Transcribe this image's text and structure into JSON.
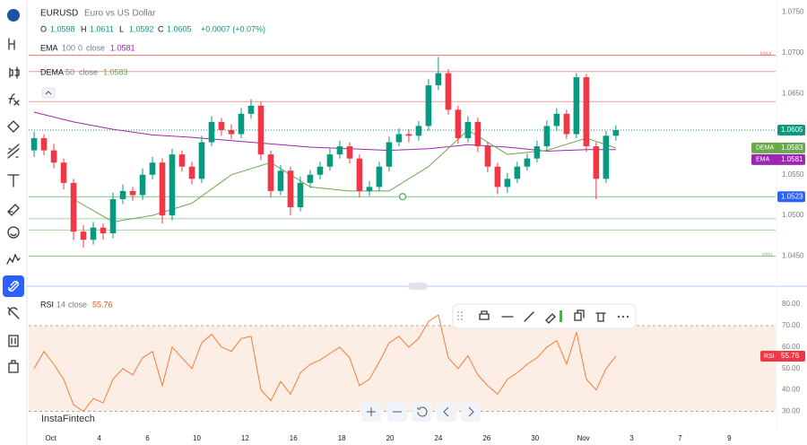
{
  "watermark": "InstaFintech",
  "chart_data": [
    {
      "type": "candlestick",
      "symbol": "EURUSD",
      "subtitle": "Euro vs US Dollar",
      "ohlc_labels": [
        "O",
        "H",
        "L",
        "C"
      ],
      "change": "+0.0007 (+0.07%)",
      "xlim": [
        -0.55,
        75.2
      ],
      "ylim": [
        1.0414,
        1.0765
      ],
      "grid": false,
      "yticks": [
        {
          "value": 1.075,
          "label": "1.0750"
        },
        {
          "value": 1.07,
          "label": "1.0700"
        },
        {
          "value": 1.065,
          "label": "1.0650"
        },
        {
          "value": 1.055,
          "label": "1.0550"
        },
        {
          "value": 1.05,
          "label": "1.0500"
        },
        {
          "value": 1.045,
          "label": "1.0450"
        }
      ],
      "series": [
        {
          "name": "EURUSD",
          "up_color": "#089981",
          "down_color": "#f23645",
          "open": [
            1.058,
            1.0595,
            1.058,
            1.0565,
            1.054,
            1.048,
            1.047,
            1.0485,
            1.0478,
            1.052,
            1.053,
            1.0525,
            1.055,
            1.0565,
            1.05,
            1.0575,
            1.056,
            1.0545,
            1.059,
            1.0615,
            1.0605,
            1.06,
            1.0625,
            1.0635,
            1.0575,
            1.053,
            1.0555,
            1.051,
            1.054,
            1.055,
            1.056,
            1.0575,
            1.0585,
            1.057,
            1.053,
            1.0535,
            1.056,
            1.059,
            1.06,
            1.0598,
            1.061,
            1.066,
            1.0675,
            1.063,
            1.0595,
            1.0615,
            1.0585,
            1.056,
            1.0535,
            1.0545,
            1.056,
            1.057,
            1.0585,
            1.061,
            1.0625,
            1.06,
            1.067,
            1.0585,
            1.0545,
            1.0598
          ],
          "high": [
            1.0603,
            1.06,
            1.0588,
            1.057,
            1.0545,
            1.0488,
            1.0492,
            1.049,
            1.0528,
            1.0538,
            1.0535,
            1.0558,
            1.0572,
            1.057,
            1.0582,
            1.058,
            1.0566,
            1.0598,
            1.0622,
            1.062,
            1.0612,
            1.0632,
            1.0643,
            1.064,
            1.058,
            1.0562,
            1.056,
            1.0548,
            1.0556,
            1.0566,
            1.0582,
            1.0592,
            1.059,
            1.0575,
            1.0542,
            1.0566,
            1.0597,
            1.0607,
            1.0606,
            1.0616,
            1.0668,
            1.0695,
            1.068,
            1.0635,
            1.0622,
            1.062,
            1.059,
            1.0565,
            1.0552,
            1.0566,
            1.0576,
            1.0592,
            1.0617,
            1.0632,
            1.063,
            1.0675,
            1.0674,
            1.059,
            1.0604,
            1.0611
          ],
          "low": [
            1.0572,
            1.0574,
            1.0558,
            1.0532,
            1.047,
            1.046,
            1.0464,
            1.047,
            1.0472,
            1.0514,
            1.0518,
            1.0519,
            1.0544,
            1.049,
            1.0494,
            1.0554,
            1.0538,
            1.054,
            1.0585,
            1.0598,
            1.0594,
            1.0595,
            1.0619,
            1.0568,
            1.0522,
            1.0525,
            1.05,
            1.0505,
            1.0534,
            1.0544,
            1.0555,
            1.057,
            1.0564,
            1.0522,
            1.0524,
            1.053,
            1.0554,
            1.0585,
            1.059,
            1.0592,
            1.0604,
            1.0654,
            1.0624,
            1.0588,
            1.059,
            1.0578,
            1.0553,
            1.0526,
            1.0528,
            1.054,
            1.0555,
            1.0565,
            1.058,
            1.0604,
            1.0594,
            1.0595,
            1.0578,
            1.052,
            1.054,
            1.0592
          ],
          "close": [
            1.0595,
            1.058,
            1.0565,
            1.054,
            1.048,
            1.047,
            1.0485,
            1.0478,
            1.052,
            1.053,
            1.0525,
            1.055,
            1.0565,
            1.05,
            1.0575,
            1.056,
            1.0545,
            1.059,
            1.0615,
            1.0605,
            1.06,
            1.0625,
            1.0635,
            1.0575,
            1.053,
            1.0555,
            1.051,
            1.054,
            1.055,
            1.056,
            1.0575,
            1.0585,
            1.057,
            1.053,
            1.0535,
            1.056,
            1.059,
            1.06,
            1.0598,
            1.061,
            1.066,
            1.0675,
            1.063,
            1.0595,
            1.0615,
            1.0585,
            1.056,
            1.0535,
            1.0545,
            1.056,
            1.057,
            1.0585,
            1.061,
            1.0625,
            1.06,
            1.067,
            1.0585,
            1.0545,
            1.0598,
            1.0605
          ]
        }
      ],
      "overlays": [
        {
          "name": "EMA",
          "params": [
            100,
            0,
            "close"
          ],
          "color": "#9c27b0",
          "x": [
            0,
            4,
            8,
            12,
            16,
            20,
            24,
            28,
            32,
            36,
            40,
            44,
            48,
            52,
            56,
            59
          ],
          "values": [
            1.0627,
            1.0615,
            1.0606,
            1.0599,
            1.0596,
            1.0592,
            1.0588,
            1.0584,
            1.0582,
            1.058,
            1.0582,
            1.0587,
            1.0584,
            1.0579,
            1.0581,
            1.0581
          ]
        },
        {
          "name": "DEMA",
          "params": [
            50,
            "close"
          ],
          "color": "#6aa84f",
          "x": [
            4,
            8,
            12,
            16,
            20,
            24,
            28,
            32,
            36,
            40,
            44,
            48,
            52,
            56,
            59
          ],
          "values": [
            1.052,
            1.0492,
            1.05,
            1.0515,
            1.055,
            1.0565,
            1.0535,
            1.053,
            1.053,
            1.056,
            1.0605,
            1.0575,
            1.058,
            1.0595,
            1.0583
          ]
        }
      ],
      "levels": [
        {
          "value": 1.0697,
          "color": "#e57373",
          "label": "MAX"
        },
        {
          "value": 1.0677,
          "color": "#ef9a9a"
        },
        {
          "value": 1.064,
          "color": "#ef9a9a"
        },
        {
          "value": 1.0523,
          "color": "#81c784"
        },
        {
          "value": 1.0496,
          "color": "#a5d6a7"
        },
        {
          "value": 1.0482,
          "color": "#a5d6a7"
        },
        {
          "value": 1.045,
          "color": "#81c784",
          "label": "MIN"
        }
      ]
    },
    {
      "type": "line",
      "name": "RSI",
      "params": [
        14,
        "close"
      ],
      "color": "#f57c38",
      "xlim": [
        -0.55,
        75.2
      ],
      "ylim": [
        21,
        85.5
      ],
      "upper": 70,
      "lower": 30,
      "yticks": [
        {
          "value": 80,
          "label": "80.00"
        },
        {
          "value": 70,
          "label": "70.00"
        },
        {
          "value": 60,
          "label": "60.00"
        },
        {
          "value": 50,
          "label": "50.00"
        },
        {
          "value": 40,
          "label": "40.00"
        },
        {
          "value": 30,
          "label": "30.00"
        }
      ],
      "xticks": [
        {
          "value": 1.7,
          "label": "Oct"
        },
        {
          "value": 6.6,
          "label": "4"
        },
        {
          "value": 11.5,
          "label": "6"
        },
        {
          "value": 16.5,
          "label": "10"
        },
        {
          "value": 21.4,
          "label": "12"
        },
        {
          "value": 26.3,
          "label": "16"
        },
        {
          "value": 31.2,
          "label": "18"
        },
        {
          "value": 36.1,
          "label": "20"
        },
        {
          "value": 41,
          "label": "24"
        },
        {
          "value": 45.9,
          "label": "26"
        },
        {
          "value": 50.8,
          "label": "30"
        },
        {
          "value": 55.7,
          "label": "Nov"
        },
        {
          "value": 60.6,
          "label": "3"
        },
        {
          "value": 65.5,
          "label": "7"
        },
        {
          "value": 70.5,
          "label": "9"
        }
      ],
      "values": [
        50,
        58,
        52,
        45,
        33,
        30,
        36,
        34,
        45,
        50,
        47,
        55,
        58,
        42,
        60,
        55,
        50,
        62,
        66,
        60,
        58,
        64,
        65,
        40,
        35,
        44,
        38,
        48,
        52,
        54,
        57,
        60,
        55,
        42,
        45,
        53,
        62,
        65,
        60,
        64,
        72,
        75,
        55,
        50,
        56,
        47,
        42,
        38,
        45,
        48,
        52,
        55,
        60,
        63,
        52,
        67,
        45,
        40,
        50,
        55.76
      ]
    }
  ]
}
